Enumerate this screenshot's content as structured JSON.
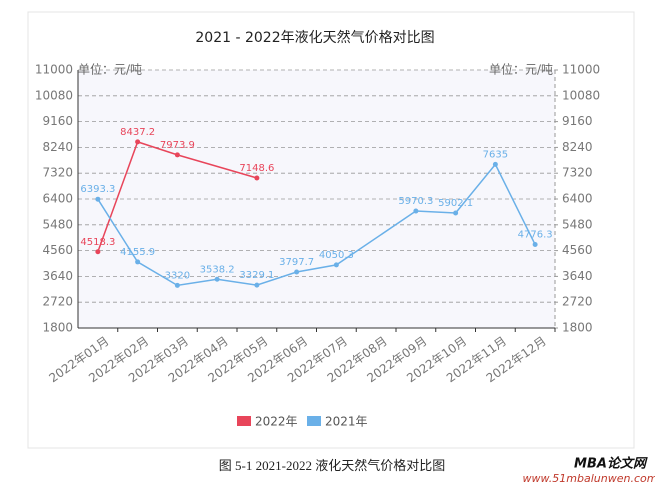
{
  "chart_data": {
    "type": "line",
    "title": "2021 - 2022年液化天然气价格对比图",
    "y_label": "单位：元/吨",
    "y2_label": "单位：元/吨",
    "categories": [
      "2022年01月",
      "2022年02月",
      "2022年03月",
      "2022年04月",
      "2022年05月",
      "2022年06月",
      "2022年07月",
      "2022年08月",
      "2022年09月",
      "2022年10月",
      "2022年11月",
      "2022年12月"
    ],
    "series": [
      {
        "name": "2022年",
        "color": "#e8455a",
        "values": [
          4518.3,
          8437.2,
          7973.9,
          null,
          7148.6,
          null,
          null,
          null,
          null,
          null,
          null,
          null
        ]
      },
      {
        "name": "2021年",
        "color": "#6ab0e8",
        "values": [
          6393.3,
          4155.9,
          3320,
          3538.2,
          3329.1,
          3797.7,
          4050.3,
          null,
          5970.3,
          5902.1,
          7635,
          4776.3
        ]
      }
    ],
    "connect_gaps": true,
    "ylim": [
      1800,
      11000
    ],
    "yticks": [
      1800,
      2720,
      3640,
      4560,
      5480,
      6400,
      7320,
      8240,
      9160,
      10080,
      11000
    ],
    "y2lim": [
      1800,
      11000
    ],
    "y2ticks": [
      1800,
      2720,
      3640,
      4560,
      5480,
      6400,
      7320,
      8240,
      9160,
      10080,
      11000
    ],
    "grid": true
  },
  "caption": "图 5-1 2021-2022 液化天然气价格对比图",
  "watermark": {
    "title": "MBA论文网",
    "url": "www.51mbalunwen.com"
  }
}
